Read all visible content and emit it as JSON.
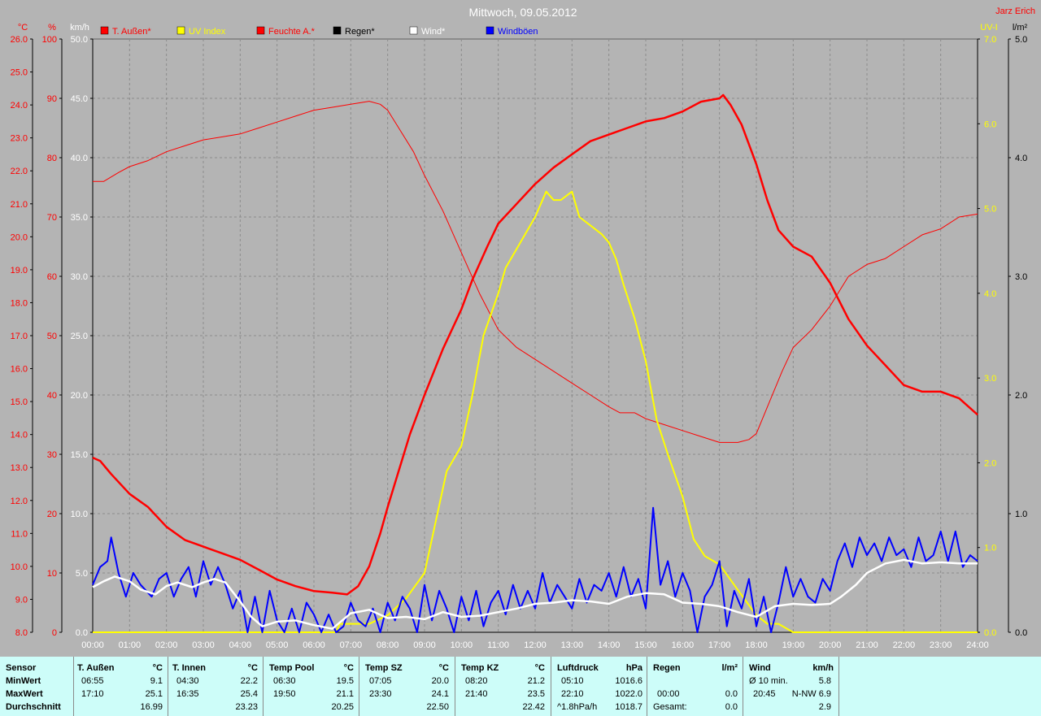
{
  "chart_data": {
    "type": "line",
    "title": "Mittwoch, 09.05.2012",
    "author": "Jarz Erich",
    "left_axes": [
      {
        "unit": "°C",
        "range": [
          8.0,
          26.0
        ],
        "ticks": [
          "8.0",
          "9.0",
          "10.0",
          "11.0",
          "12.0",
          "13.0",
          "14.0",
          "15.0",
          "16.0",
          "17.0",
          "18.0",
          "19.0",
          "20.0",
          "21.0",
          "22.0",
          "23.0",
          "24.0",
          "25.0",
          "26.0"
        ],
        "color": "#ff0000"
      },
      {
        "unit": "%",
        "range": [
          0,
          100
        ],
        "ticks": [
          "0",
          "10",
          "20",
          "30",
          "40",
          "50",
          "60",
          "70",
          "80",
          "90",
          "100"
        ],
        "color": "#ff0000"
      },
      {
        "unit": "km/h",
        "range": [
          0.0,
          50.0
        ],
        "ticks": [
          "0.0",
          "5.0",
          "10.0",
          "15.0",
          "20.0",
          "25.0",
          "30.0",
          "35.0",
          "40.0",
          "45.0",
          "50.0"
        ],
        "color": "#ffffff"
      }
    ],
    "right_axes": [
      {
        "unit": "UV-I",
        "range": [
          0.0,
          7.0
        ],
        "ticks": [
          "0.0",
          "1.0",
          "2.0",
          "3.0",
          "4.0",
          "5.0",
          "6.0",
          "7.0"
        ],
        "color": "#ffff00"
      },
      {
        "unit": "l/m²",
        "range": [
          0.0,
          5.0
        ],
        "ticks": [
          "0.0",
          "1.0",
          "2.0",
          "3.0",
          "4.0",
          "5.0"
        ],
        "color": "#000000"
      }
    ],
    "x_ticks": [
      "00:00",
      "01:00",
      "02:00",
      "03:00",
      "04:00",
      "05:00",
      "06:00",
      "07:00",
      "08:00",
      "09:00",
      "10:00",
      "11:00",
      "12:00",
      "13:00",
      "14:00",
      "15:00",
      "16:00",
      "17:00",
      "18:00",
      "19:00",
      "20:00",
      "21:00",
      "22:00",
      "23:00",
      "24:00"
    ],
    "grid": true,
    "legend": [
      {
        "name": "T. Außen*",
        "color": "#ff0000"
      },
      {
        "name": "UV Index",
        "color": "#ffff00"
      },
      {
        "name": "Feuchte A.*",
        "color": "#ff0000"
      },
      {
        "name": "Regen*",
        "color": "#000000"
      },
      {
        "name": "Wind*",
        "color": "#ffffff"
      },
      {
        "name": "Windböen",
        "color": "#0000ff"
      }
    ],
    "series": [
      {
        "name": "T. Außen*",
        "axis": "°C",
        "color": "#ff0000",
        "width": 2.5,
        "x": [
          0,
          0.2,
          0.5,
          1,
          1.5,
          2,
          2.5,
          3,
          3.5,
          4,
          4.5,
          5,
          5.5,
          6,
          6.5,
          6.9,
          7.2,
          7.5,
          7.8,
          8,
          8.3,
          8.6,
          9,
          9.5,
          10,
          10.3,
          10.7,
          11,
          11.5,
          12,
          12.5,
          13,
          13.5,
          14,
          14.5,
          15,
          15.5,
          16,
          16.5,
          17,
          17.1,
          17.3,
          17.6,
          18,
          18.3,
          18.6,
          19,
          19.5,
          20,
          20.5,
          21,
          21.5,
          22,
          22.5,
          23,
          23.5,
          24
        ],
        "y": [
          13.3,
          13.2,
          12.8,
          12.2,
          11.8,
          11.2,
          10.8,
          10.6,
          10.4,
          10.2,
          9.9,
          9.6,
          9.4,
          9.25,
          9.2,
          9.15,
          9.4,
          10.0,
          11.0,
          11.8,
          12.9,
          14.0,
          15.2,
          16.6,
          17.8,
          18.7,
          19.7,
          20.4,
          21.0,
          21.6,
          22.1,
          22.5,
          22.9,
          23.1,
          23.3,
          23.5,
          23.6,
          23.8,
          24.1,
          24.2,
          24.3,
          24.0,
          23.4,
          22.2,
          21.1,
          20.2,
          19.7,
          19.4,
          18.6,
          17.5,
          16.7,
          16.1,
          15.5,
          15.3,
          15.3,
          15.1,
          14.6
        ]
      },
      {
        "name": "Feuchte A.*",
        "axis": "%",
        "color": "#ff0000",
        "width": 1,
        "x": [
          0,
          0.3,
          0.7,
          1,
          1.5,
          2,
          2.5,
          3,
          3.5,
          4,
          4.5,
          5,
          5.5,
          6,
          6.5,
          7,
          7.5,
          7.8,
          8,
          8.3,
          8.7,
          9,
          9.5,
          10,
          10.5,
          11,
          11.5,
          12,
          12.5,
          13,
          13.5,
          14,
          14.3,
          14.7,
          15,
          15.5,
          16,
          16.5,
          17,
          17.5,
          17.8,
          18,
          18.3,
          18.7,
          19,
          19.5,
          20,
          20.5,
          21,
          21.5,
          22,
          22.5,
          23,
          23.5,
          24
        ],
        "y": [
          76,
          76,
          77.5,
          78.5,
          79.5,
          81,
          82,
          83,
          83.5,
          84,
          85,
          86,
          87,
          88,
          88.5,
          89,
          89.5,
          89,
          88,
          85,
          81,
          77,
          71,
          64,
          57,
          51,
          48,
          46,
          44,
          42,
          40,
          38,
          37,
          37,
          36,
          35,
          34,
          33,
          32,
          32,
          32.5,
          33.5,
          38,
          44,
          48,
          51,
          55,
          60,
          62,
          63,
          65,
          67,
          68,
          70,
          70.5
        ]
      },
      {
        "name": "Wind*",
        "axis": "km/h",
        "color": "#ffffff",
        "width": 2.5,
        "x": [
          0,
          0.3,
          0.6,
          1,
          1.3,
          1.7,
          2,
          2.3,
          2.7,
          3,
          3.3,
          3.6,
          4,
          4.3,
          4.6,
          5,
          5.5,
          6,
          6.5,
          7,
          7.5,
          8,
          8.5,
          9,
          9.5,
          10,
          10.5,
          11,
          11.5,
          12,
          12.5,
          13,
          13.5,
          14,
          14.5,
          15,
          15.5,
          16,
          16.5,
          17,
          17.5,
          18,
          18.5,
          19,
          19.5,
          20,
          20.3,
          20.7,
          21,
          21.5,
          22,
          22.5,
          23,
          23.5,
          24
        ],
        "y": [
          3.8,
          4.3,
          4.7,
          4.3,
          3.6,
          3.2,
          3.9,
          4.2,
          3.8,
          4.2,
          4.5,
          4.2,
          2.6,
          1.3,
          0.5,
          0.9,
          1.0,
          0.6,
          0.3,
          1.6,
          1.9,
          1.2,
          1.3,
          1.1,
          1.7,
          1.3,
          1.4,
          1.7,
          2.0,
          2.4,
          2.5,
          2.7,
          2.6,
          2.4,
          3.0,
          3.3,
          3.2,
          2.5,
          2.4,
          2.2,
          1.7,
          1.3,
          2.2,
          2.4,
          2.3,
          2.4,
          3.0,
          4.0,
          5.0,
          5.8,
          6.1,
          5.8,
          5.9,
          5.8,
          5.8
        ]
      },
      {
        "name": "UV Index",
        "axis": "UV-I",
        "color": "#ffff00",
        "width": 2,
        "x": [
          0,
          6.6,
          6.7,
          7.5,
          8,
          8.5,
          9,
          9.3,
          9.6,
          10,
          10.3,
          10.6,
          11,
          11.2,
          11.6,
          12,
          12.3,
          12.5,
          12.7,
          13,
          13.2,
          13.5,
          13.8,
          14,
          14.2,
          14.4,
          14.7,
          15,
          15.3,
          15.6,
          16,
          16.3,
          16.6,
          17,
          17.5,
          18,
          18.3,
          18.6,
          19,
          24
        ],
        "y": [
          0,
          0,
          0.1,
          0.1,
          0.2,
          0.4,
          0.7,
          1.3,
          1.9,
          2.2,
          2.8,
          3.5,
          4.0,
          4.3,
          4.6,
          4.9,
          5.2,
          5.1,
          5.1,
          5.2,
          4.9,
          4.8,
          4.7,
          4.6,
          4.4,
          4.1,
          3.7,
          3.2,
          2.5,
          2.1,
          1.6,
          1.1,
          0.9,
          0.8,
          0.5,
          0.2,
          0.1,
          0.1,
          0,
          0
        ]
      },
      {
        "name": "Regen*",
        "axis": "l/m²",
        "color": "#000000",
        "width": 1,
        "x": [
          0,
          24
        ],
        "y": [
          0,
          0
        ]
      },
      {
        "name": "Windböen",
        "axis": "km/h",
        "color": "#0000ff",
        "width": 2,
        "x": [
          0,
          0.2,
          0.4,
          0.5,
          0.7,
          0.9,
          1.1,
          1.3,
          1.6,
          1.8,
          2.0,
          2.2,
          2.4,
          2.6,
          2.8,
          3.0,
          3.2,
          3.4,
          3.6,
          3.8,
          4.0,
          4.2,
          4.4,
          4.6,
          4.8,
          5.0,
          5.2,
          5.4,
          5.6,
          5.8,
          6.0,
          6.2,
          6.4,
          6.6,
          6.8,
          7.0,
          7.2,
          7.4,
          7.6,
          7.8,
          8.0,
          8.2,
          8.4,
          8.6,
          8.8,
          9.0,
          9.2,
          9.4,
          9.6,
          9.8,
          10.0,
          10.2,
          10.4,
          10.6,
          10.8,
          11.0,
          11.2,
          11.4,
          11.6,
          11.8,
          12.0,
          12.2,
          12.4,
          12.6,
          12.8,
          13.0,
          13.2,
          13.4,
          13.6,
          13.8,
          14.0,
          14.2,
          14.4,
          14.6,
          14.8,
          15.0,
          15.2,
          15.4,
          15.6,
          15.8,
          16.0,
          16.2,
          16.4,
          16.6,
          16.8,
          17.0,
          17.2,
          17.4,
          17.6,
          17.8,
          18.0,
          18.2,
          18.4,
          18.6,
          18.8,
          19.0,
          19.2,
          19.4,
          19.6,
          19.8,
          20.0,
          20.2,
          20.4,
          20.6,
          20.8,
          21.0,
          21.2,
          21.4,
          21.6,
          21.8,
          22.0,
          22.2,
          22.4,
          22.6,
          22.8,
          23.0,
          23.2,
          23.4,
          23.6,
          23.8,
          24.0
        ],
        "y": [
          4.0,
          5.5,
          6.0,
          8.0,
          5.0,
          3.0,
          5.0,
          4.0,
          3.0,
          4.5,
          5.0,
          3.0,
          4.5,
          5.5,
          3.0,
          6.0,
          4.0,
          5.5,
          4.0,
          2.0,
          3.5,
          0.0,
          3.0,
          0.0,
          3.5,
          1.0,
          0.0,
          2.0,
          0.0,
          2.5,
          1.5,
          0.0,
          1.5,
          0.0,
          0.5,
          2.5,
          1.0,
          0.5,
          2.0,
          0.0,
          2.5,
          1.0,
          3.0,
          2.0,
          0.0,
          4.0,
          1.0,
          3.5,
          2.0,
          0.0,
          3.0,
          1.0,
          3.5,
          0.5,
          2.5,
          3.5,
          1.5,
          4.0,
          2.0,
          3.5,
          2.0,
          5.0,
          2.5,
          4.0,
          3.0,
          2.0,
          4.5,
          2.5,
          4.0,
          3.5,
          5.0,
          3.0,
          5.5,
          3.0,
          4.5,
          2.0,
          10.5,
          4.0,
          6.0,
          3.0,
          5.0,
          3.5,
          0.0,
          3.0,
          4.0,
          6.0,
          0.5,
          3.5,
          2.0,
          4.5,
          0.5,
          3.0,
          0.0,
          2.5,
          5.5,
          3.0,
          4.5,
          3.0,
          2.5,
          4.5,
          3.5,
          6.0,
          7.5,
          5.5,
          8.0,
          6.5,
          7.5,
          6.0,
          8.0,
          6.5,
          7.0,
          5.5,
          8.0,
          6.0,
          6.5,
          8.5,
          6.0,
          8.5,
          5.5,
          6.5,
          6.0
        ]
      }
    ]
  },
  "stats": {
    "headers": [
      "Sensor",
      "T. Außen",
      "°C",
      "T. Innen",
      "°C",
      "Temp Pool",
      "°C",
      "Temp SZ",
      "°C",
      "Temp KZ",
      "°C",
      "Luftdruck",
      "hPa",
      "Regen",
      "l/m²",
      "Wind",
      "km/h"
    ],
    "row_labels": [
      "MinWert",
      "MaxWert",
      "Durchschnitt"
    ],
    "t_aussen": {
      "min_time": "06:55",
      "min": "9.1",
      "max_time": "17:10",
      "max": "25.1",
      "avg": "16.99"
    },
    "t_innen": {
      "min_time": "04:30",
      "min": "22.2",
      "max_time": "16:35",
      "max": "25.4",
      "avg": "23.23"
    },
    "temp_pool": {
      "min_time": "06:30",
      "min": "19.5",
      "max_time": "19:50",
      "max": "21.1",
      "avg": "20.25"
    },
    "temp_sz": {
      "min_time": "07:05",
      "min": "20.0",
      "max_time": "23:30",
      "max": "24.1",
      "avg": "22.50"
    },
    "temp_kz": {
      "min_time": "08:20",
      "min": "21.2",
      "max_time": "21:40",
      "max": "23.5",
      "avg": "22.42"
    },
    "luftdruck": {
      "min_time": "05:10",
      "min": "1016.6",
      "max_time": "22:10",
      "max": "1022.0",
      "trend": "^1.8hPa/h",
      "avg": "1018.7"
    },
    "regen": {
      "max_time": "00:00",
      "max": "0.0",
      "total_label": "Gesamt:",
      "total": "0.0"
    },
    "wind": {
      "avg_label": "Ø 10 min.",
      "avg10": "5.8",
      "max_time": "20:45",
      "max": "N-NW 6.9",
      "avg": "2.9"
    }
  }
}
